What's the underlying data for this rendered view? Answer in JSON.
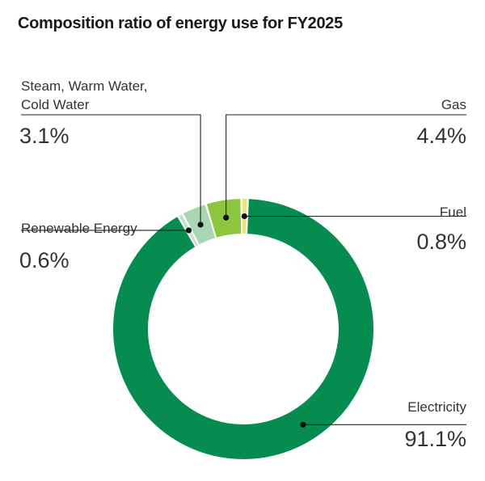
{
  "chart_data": {
    "type": "pie",
    "title": "Composition ratio of energy use for FY2025",
    "categories": [
      "Electricity",
      "Renewable Energy",
      "Steam, Warm Water, Cold Water",
      "Gas",
      "Fuel"
    ],
    "values": [
      91.1,
      0.6,
      3.1,
      4.4,
      0.8
    ],
    "value_labels": [
      "91.1%",
      "0.6%",
      "3.1%",
      "4.4%",
      "0.8%"
    ],
    "unit": "%",
    "donut": true,
    "colors": [
      "#068c4e",
      "#c2dfc9",
      "#a9d6b3",
      "#8cc63f",
      "#e9e47d"
    ],
    "legend": "callout labels"
  }
}
